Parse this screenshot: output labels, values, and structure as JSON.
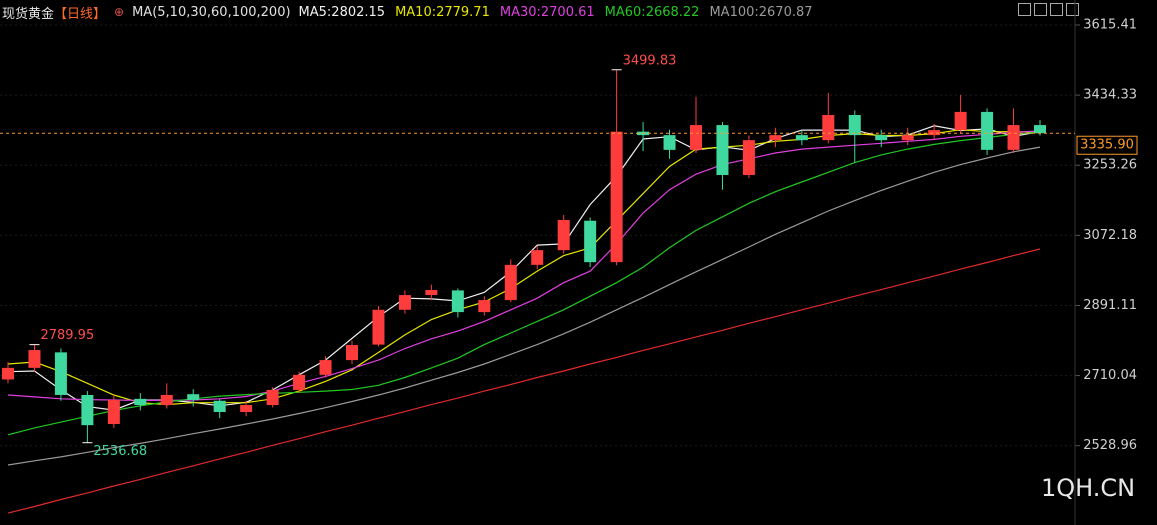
{
  "chart_data": {
    "type": "candlestick",
    "title": "现货黄金",
    "period": "【日线】",
    "ma_label": "MA(5,10,30,60,100,200)",
    "watermark": "1QH.CN",
    "up_color": "#ff3c3c",
    "down_color": "#3fd9a0",
    "ohlc": {
      "open": [
        2700,
        2730,
        2770,
        2660,
        2585,
        2650,
        2634,
        2662,
        2645,
        2616,
        2634,
        2673,
        2712,
        2750,
        2790,
        2880,
        2918,
        2930,
        2874,
        2905,
        2996,
        3034,
        3110,
        3003,
        3340,
        3331,
        3293,
        3357,
        3228,
        3318,
        3331,
        3318,
        3383,
        3331,
        3318,
        3331,
        3344,
        3391,
        3293,
        3357
      ],
      "high": [
        2745,
        2789.95,
        2780,
        2670,
        2660,
        2665,
        2690,
        2675,
        2650,
        2645,
        2680,
        2720,
        2760,
        2800,
        2890,
        2930,
        2945,
        2935,
        2915,
        3010,
        3045,
        3125,
        3118,
        3499.83,
        3365,
        3345,
        3430,
        3365,
        3330,
        3350,
        3345,
        3440,
        3395,
        3345,
        3350,
        3360,
        3435,
        3400,
        3400,
        3370
      ],
      "low": [
        2690,
        2720,
        2645,
        2536.68,
        2575,
        2620,
        2625,
        2630,
        2600,
        2605,
        2628,
        2665,
        2705,
        2740,
        2785,
        2870,
        2905,
        2860,
        2865,
        2900,
        2985,
        3025,
        2990,
        2995,
        3290,
        3270,
        3285,
        3190,
        3220,
        3300,
        3305,
        3310,
        3260,
        3300,
        3305,
        3320,
        3335,
        3280,
        3285,
        3330
      ],
      "close": [
        2730,
        2776,
        2660,
        2582,
        2647,
        2634,
        2660,
        2647,
        2616,
        2634,
        2673,
        2712,
        2750,
        2789,
        2880,
        2918,
        2931,
        2874,
        2905,
        2996,
        3034,
        3112,
        3003,
        3340,
        3331,
        3293,
        3357,
        3228,
        3318,
        3331,
        3318,
        3383,
        3331,
        3318,
        3331,
        3344,
        3391,
        3293,
        3357,
        3335.9
      ]
    },
    "series": [
      {
        "name": "MA5:2802.15",
        "color": "#f0f0f0",
        "values": [
          2720,
          2722,
          2673,
          2630,
          2621,
          2647,
          2647,
          2641,
          2632,
          2641,
          2673,
          2712,
          2750,
          2806,
          2862,
          2910,
          2908,
          2903,
          2925,
          2978,
          3047,
          3050,
          3152,
          3225,
          3321,
          3327,
          3293,
          3301,
          3292,
          3322,
          3344,
          3344,
          3344,
          3327,
          3331,
          3355,
          3343,
          3347,
          3328,
          3340
        ]
      },
      {
        "name": "MA10:2779.71",
        "color": "#e6e600",
        "values": [
          2740,
          2745,
          2720,
          2690,
          2660,
          2640,
          2635,
          2640,
          2640,
          2640,
          2650,
          2670,
          2695,
          2725,
          2770,
          2815,
          2855,
          2880,
          2900,
          2935,
          2980,
          3020,
          3040,
          3110,
          3180,
          3250,
          3295,
          3300,
          3305,
          3315,
          3320,
          3330,
          3335,
          3330,
          3330,
          3335,
          3345,
          3340,
          3340,
          3338
        ]
      },
      {
        "name": "MA30:2700.61",
        "color": "#e040e0",
        "values": [
          2660,
          2655,
          2650,
          2648,
          2647,
          2646,
          2646,
          2647,
          2650,
          2656,
          2670,
          2690,
          2708,
          2728,
          2750,
          2780,
          2805,
          2825,
          2850,
          2880,
          2910,
          2950,
          2980,
          3050,
          3130,
          3190,
          3230,
          3255,
          3270,
          3285,
          3295,
          3300,
          3305,
          3310,
          3315,
          3320,
          3328,
          3333,
          3338,
          3342
        ]
      },
      {
        "name": "MA60:2668.22",
        "color": "#22c822",
        "values": [
          2557,
          2575,
          2590,
          2605,
          2620,
          2632,
          2642,
          2650,
          2657,
          2661,
          2664,
          2667,
          2670,
          2674,
          2685,
          2705,
          2730,
          2755,
          2790,
          2820,
          2850,
          2880,
          2915,
          2950,
          2990,
          3040,
          3085,
          3120,
          3155,
          3185,
          3210,
          3235,
          3260,
          3280,
          3295,
          3307,
          3317,
          3325,
          3333,
          3339
        ]
      },
      {
        "name": "MA100:2670.87",
        "color": "#9a9a9a",
        "values": [
          2479,
          2490,
          2500,
          2512,
          2524,
          2535,
          2547,
          2560,
          2572,
          2585,
          2598,
          2612,
          2627,
          2643,
          2660,
          2678,
          2698,
          2718,
          2740,
          2765,
          2790,
          2818,
          2848,
          2880,
          2912,
          2945,
          2978,
          3010,
          3042,
          3075,
          3105,
          3135,
          3162,
          3188,
          3212,
          3235,
          3255,
          3272,
          3288,
          3300
        ]
      },
      {
        "color": "#e02a2a",
        "values": [
          2355,
          2372,
          2390,
          2407,
          2425,
          2442,
          2460,
          2477,
          2495,
          2512,
          2530,
          2547,
          2565,
          2582,
          2600,
          2617,
          2635,
          2652,
          2670,
          2687,
          2705,
          2722,
          2740,
          2757,
          2775,
          2792,
          2810,
          2827,
          2845,
          2862,
          2880,
          2897,
          2915,
          2932,
          2950,
          2967,
          2985,
          3002,
          3020,
          3037
        ]
      }
    ],
    "ylim": [
      2350,
      3680
    ],
    "yticks": [
      3615.41,
      3434.33,
      3253.26,
      3072.18,
      2891.11,
      2710.04,
      2528.96
    ],
    "grid": true,
    "current_price": {
      "value": 3335.9,
      "label": "3335.90"
    }
  }
}
